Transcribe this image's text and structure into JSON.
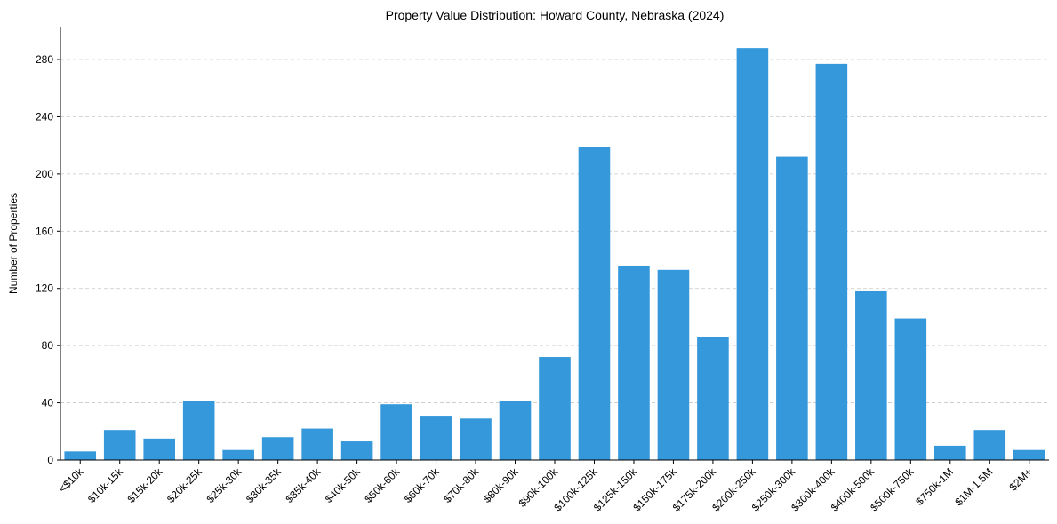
{
  "chart_data": {
    "type": "bar",
    "title": "Property Value Distribution: Howard County, Nebraska (2024)",
    "xlabel": "",
    "ylabel": "Number of Properties",
    "ylim": [
      0,
      303
    ],
    "yticks": [
      0,
      40,
      80,
      120,
      160,
      200,
      240,
      280
    ],
    "grid": "horizontal-dashed",
    "bar_color": "#3498db",
    "categories": [
      "<$10k",
      "$10k-15k",
      "$15k-20k",
      "$20k-25k",
      "$25k-30k",
      "$30k-35k",
      "$35k-40k",
      "$40k-50k",
      "$50k-60k",
      "$60k-70k",
      "$70k-80k",
      "$80k-90k",
      "$90k-100k",
      "$100k-125k",
      "$125k-150k",
      "$150k-175k",
      "$175k-200k",
      "$200k-250k",
      "$250k-300k",
      "$300k-400k",
      "$400k-500k",
      "$500k-750k",
      "$750k-1M",
      "$1M-1.5M",
      "$2M+"
    ],
    "values": [
      6,
      21,
      15,
      41,
      7,
      16,
      22,
      13,
      39,
      31,
      29,
      41,
      72,
      219,
      136,
      133,
      86,
      288,
      212,
      277,
      118,
      99,
      10,
      21,
      7
    ]
  }
}
